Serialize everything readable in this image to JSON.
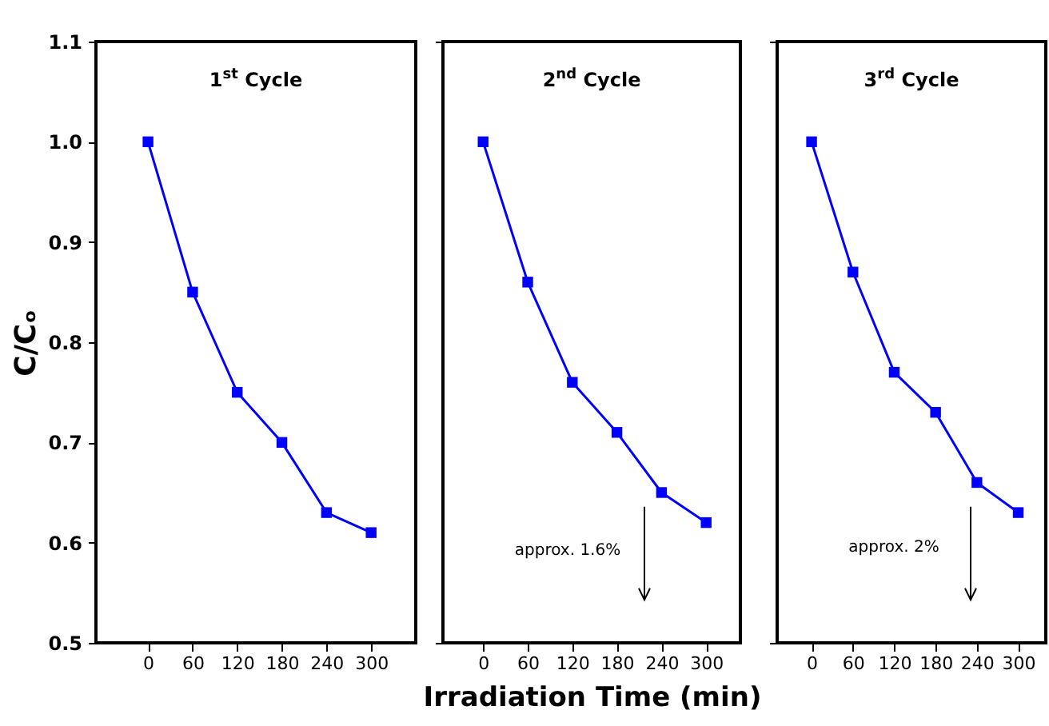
{
  "chart_data": [
    {
      "type": "line",
      "title": "1$^{st}$ Cycle",
      "ylabel": "C/Cₒ",
      "x": [
        0,
        60,
        120,
        180,
        240,
        300
      ],
      "xlim": [
        -70,
        360
      ],
      "xticks": [
        0,
        60,
        120,
        180,
        240,
        300
      ],
      "ylim": [
        0.5,
        1.1
      ],
      "yticks": [
        0.5,
        0.6,
        0.7,
        0.8,
        0.9,
        {
          "value": 1,
          "label": "1.0"
        },
        1.1
      ],
      "marker": "square",
      "grid": false,
      "series": [
        {
          "color": "#0000ff",
          "values": [
            1.0,
            0.85,
            0.75,
            0.7,
            0.63,
            0.61
          ]
        }
      ]
    },
    {
      "type": "line",
      "title": "2$^{nd}$ Cycle",
      "xlabel": "Irradiation Time (min)",
      "annotations": [
        "approx. 1.6%"
      ],
      "x": [
        0,
        60,
        120,
        180,
        240,
        300
      ],
      "xlim": [
        -54,
        346
      ],
      "xticks": [
        0,
        60,
        120,
        180,
        240,
        300
      ],
      "ylim": [
        0.5,
        1.1
      ],
      "tick_labels": "x",
      "marker": "square",
      "grid": false,
      "series": [
        {
          "color": "#0000ff",
          "values": [
            1.0,
            0.86,
            0.76,
            0.71,
            0.65,
            0.62
          ]
        }
      ]
    },
    {
      "type": "line",
      "title": "3$^{rd}$ Cycle",
      "annotations": [
        "approx. 2%"
      ],
      "x": [
        0,
        60,
        120,
        180,
        240,
        300
      ],
      "xlim": [
        -50,
        340
      ],
      "xticks": [
        0,
        60,
        120,
        180,
        240,
        300
      ],
      "ylim": [
        0.5,
        1.1
      ],
      "tick_labels": "x",
      "marker": "square",
      "grid": false,
      "series": [
        {
          "color": "#0000ff",
          "values": [
            1.0,
            0.87,
            0.77,
            0.73,
            0.66,
            0.63
          ]
        }
      ]
    }
  ]
}
